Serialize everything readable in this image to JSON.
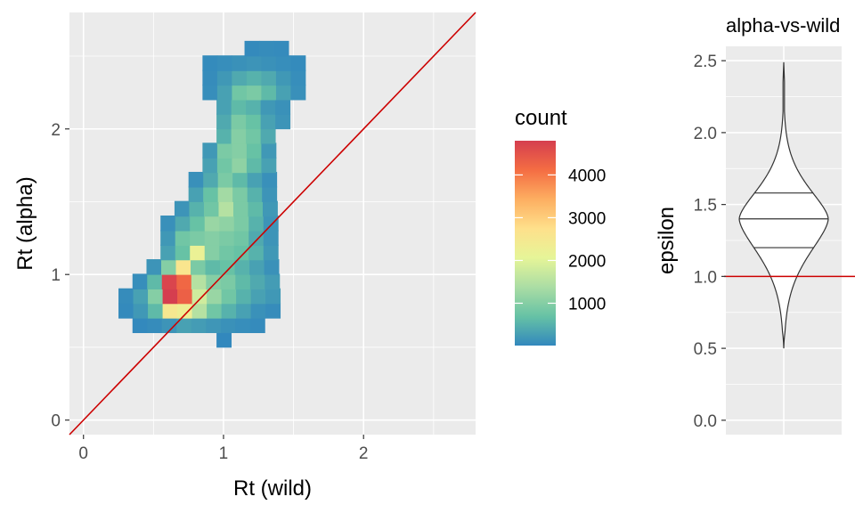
{
  "chart_data": [
    {
      "type": "heatmap",
      "xlabel": "Rt (wild)",
      "ylabel": "Rt (alpha)",
      "xlim": [
        -0.1,
        2.8
      ],
      "ylim": [
        -0.1,
        2.8
      ],
      "x_ticks": [
        0,
        1,
        2
      ],
      "x_tick_labels": [
        "0",
        "1",
        "2"
      ],
      "y_ticks": [
        0,
        1,
        2
      ],
      "y_tick_labels": [
        "0",
        "1",
        "2"
      ],
      "grid": true,
      "bin_width": 0.105,
      "bin_height": 0.105,
      "bin_rows": [
        {
          "y": 0.5,
          "x_start": 0.95,
          "counts": [
            10
          ]
        },
        {
          "y": 0.6,
          "x_start": 0.35,
          "counts": [
            20,
            60,
            150,
            300,
            250,
            180,
            120,
            80,
            50
          ]
        },
        {
          "y": 0.7,
          "x_start": 0.25,
          "counts": [
            30,
            200,
            600,
            2500,
            2300,
            1500,
            800,
            500,
            300,
            120,
            60
          ]
        },
        {
          "y": 0.8,
          "x_start": 0.25,
          "counts": [
            60,
            300,
            1000,
            4800,
            4300,
            1800,
            1200,
            800,
            500,
            300,
            200
          ]
        },
        {
          "y": 0.9,
          "x_start": 0.35,
          "counts": [
            80,
            600,
            4700,
            4200,
            1500,
            1000,
            900,
            600,
            400,
            250
          ]
        },
        {
          "y": 1.0,
          "x_start": 0.45,
          "counts": [
            150,
            1000,
            2600,
            900,
            600,
            700,
            500,
            300,
            120
          ]
        },
        {
          "y": 1.1,
          "x_start": 0.55,
          "counts": [
            300,
            700,
            2200,
            1000,
            800,
            700,
            500,
            200
          ]
        },
        {
          "y": 1.2,
          "x_start": 0.55,
          "counts": [
            200,
            800,
            900,
            1000,
            900,
            800,
            400,
            150
          ]
        },
        {
          "y": 1.3,
          "x_start": 0.55,
          "counts": [
            100,
            400,
            700,
            1200,
            1100,
            900,
            500,
            150
          ]
        },
        {
          "y": 1.4,
          "x_start": 0.65,
          "counts": [
            150,
            500,
            800,
            1500,
            900,
            600,
            200
          ]
        },
        {
          "y": 1.5,
          "x_start": 0.75,
          "counts": [
            300,
            700,
            1300,
            900,
            500,
            150
          ]
        },
        {
          "y": 1.6,
          "x_start": 0.75,
          "counts": [
            100,
            400,
            900,
            600,
            300,
            100
          ]
        },
        {
          "y": 1.7,
          "x_start": 0.85,
          "counts": [
            300,
            800,
            1100,
            600,
            300
          ]
        },
        {
          "y": 1.8,
          "x_start": 0.85,
          "counts": [
            200,
            900,
            1000,
            700,
            200
          ]
        },
        {
          "y": 1.9,
          "x_start": 0.95,
          "counts": [
            500,
            1000,
            800,
            400
          ]
        },
        {
          "y": 2.0,
          "x_start": 0.95,
          "counts": [
            400,
            900,
            700,
            300,
            150
          ]
        },
        {
          "y": 2.1,
          "x_start": 0.95,
          "counts": [
            300,
            600,
            500,
            200,
            120
          ]
        },
        {
          "y": 2.2,
          "x_start": 0.85,
          "counts": [
            80,
            300,
            800,
            900,
            600,
            300,
            100
          ]
        },
        {
          "y": 2.3,
          "x_start": 0.85,
          "counts": [
            60,
            200,
            400,
            500,
            400,
            200,
            80
          ]
        },
        {
          "y": 2.4,
          "x_start": 0.85,
          "counts": [
            40,
            80,
            120,
            150,
            120,
            80,
            40
          ]
        },
        {
          "y": 2.5,
          "x_start": 1.15,
          "counts": [
            30,
            60,
            50
          ]
        }
      ],
      "reference_line": {
        "slope": 1,
        "intercept": 0,
        "color": "#cc0000"
      },
      "legend": {
        "title": "count",
        "placement": "right",
        "ticks": [
          1000,
          2000,
          3000,
          4000
        ],
        "tick_labels": [
          "1000",
          "2000",
          "3000",
          "4000"
        ],
        "range": [
          10,
          4800
        ],
        "palette": [
          "#3288bd",
          "#66c2a5",
          "#abdda4",
          "#e6f598",
          "#fee08b",
          "#fdae61",
          "#f46d43",
          "#d53e4f"
        ]
      }
    },
    {
      "type": "violin",
      "title": "alpha-vs-wild",
      "ylabel": "epsilon",
      "xlabel": "",
      "ylim": [
        -0.1,
        2.6
      ],
      "y_ticks": [
        0,
        0.5,
        1,
        1.5,
        2,
        2.5
      ],
      "y_tick_labels": [
        "0.0",
        "0.5",
        "1.0",
        "1.5",
        "2.0",
        "2.5"
      ],
      "grid": true,
      "min": 0.5,
      "max": 2.49,
      "quantiles": [
        1.2,
        1.4,
        1.58
      ],
      "reference_line": {
        "y": 1.0,
        "color": "#cc0000"
      }
    }
  ]
}
